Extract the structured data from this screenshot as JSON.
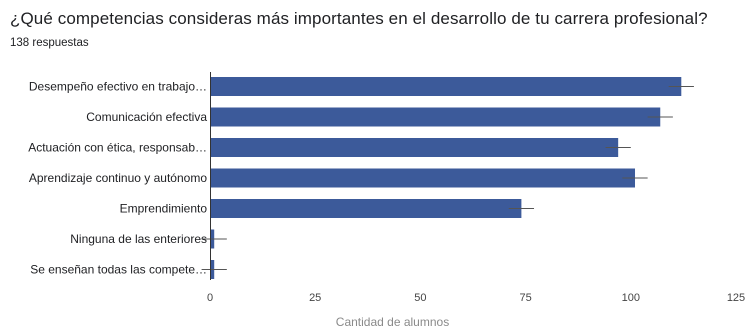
{
  "form": {
    "question": "¿Qué competencias consideras más importantes en el desarrollo de tu carrera profesional?",
    "responses": "138 respuestas"
  },
  "chart_data": {
    "type": "bar",
    "orientation": "horizontal",
    "categories": [
      "Desempeño efectivo en trabajo…",
      "Comunicación efectiva",
      "Actuación con ética, responsab…",
      "Aprendizaje continuo y autónomo",
      "Emprendimiento",
      "Ninguna de las enteriores",
      "Se enseñan todas las compete…"
    ],
    "values": [
      112,
      107,
      97,
      101,
      74,
      1,
      1
    ],
    "xlabel": "Cantidad de alumnos",
    "xlim": [
      0,
      125
    ],
    "xticks": [
      0,
      25,
      50,
      75,
      100,
      125
    ],
    "grid": false,
    "error_bars": true,
    "bar_color": "#3c5a9a"
  }
}
